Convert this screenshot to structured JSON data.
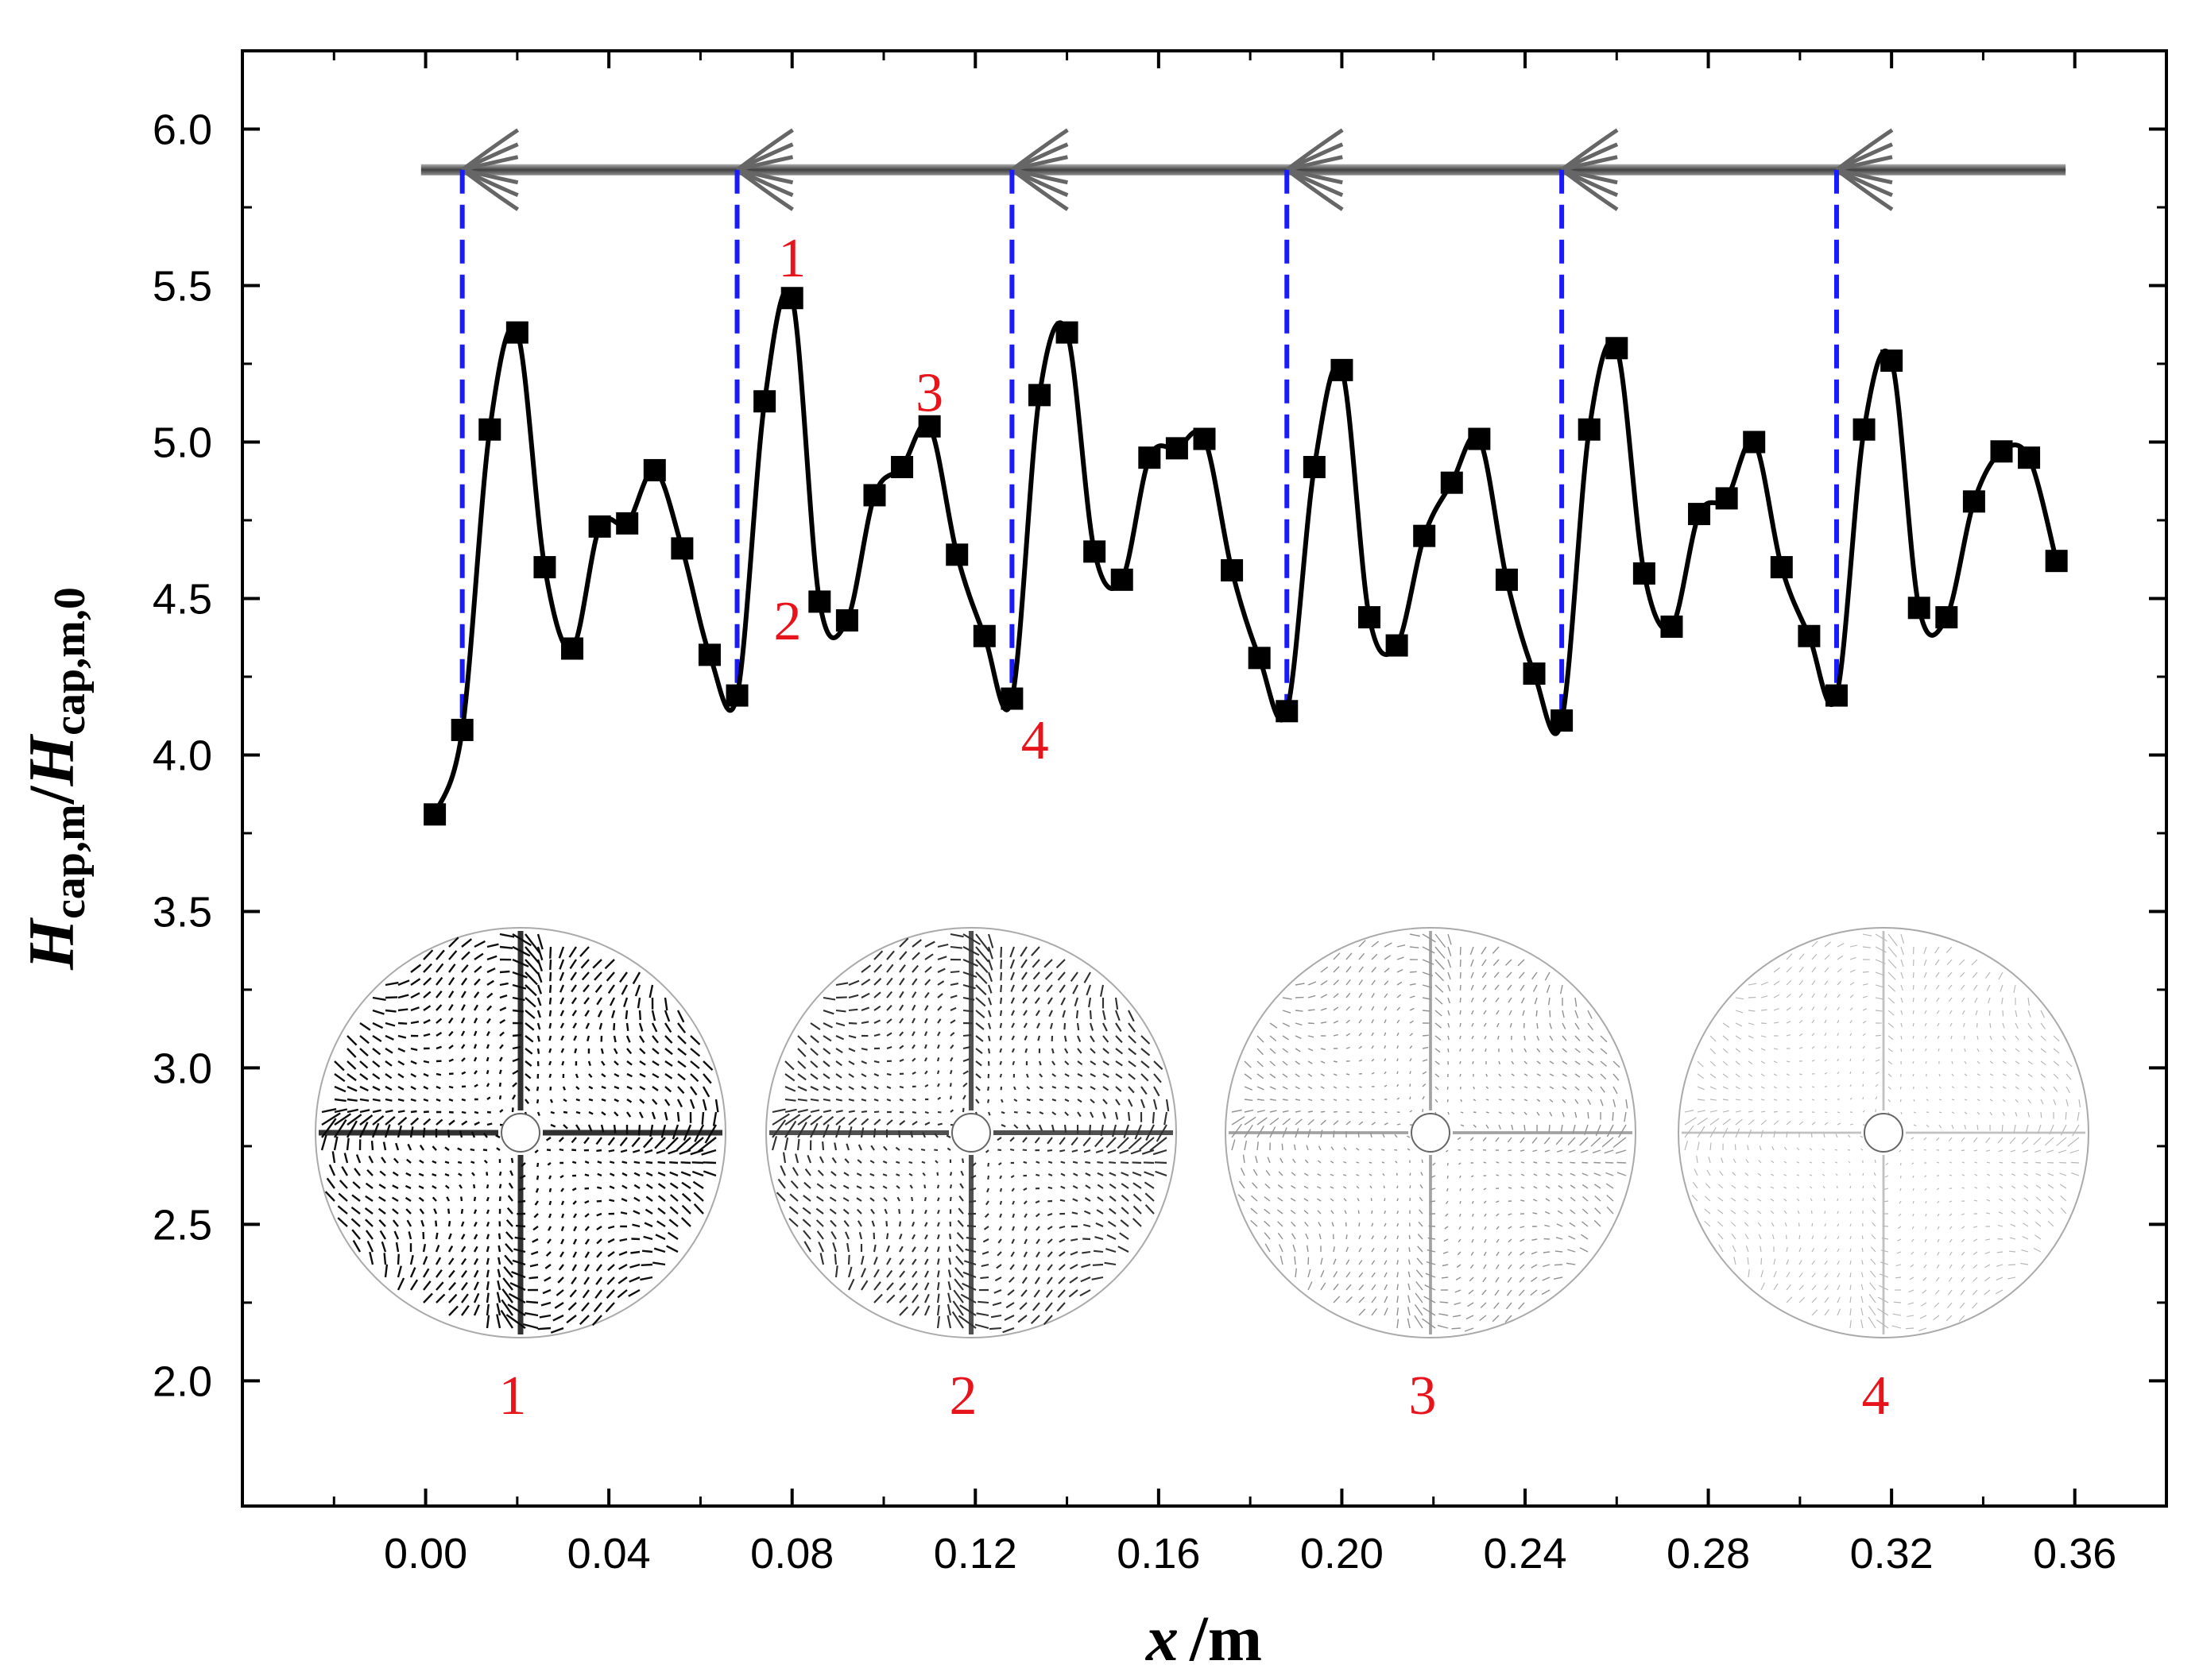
{
  "chart_data": {
    "type": "line",
    "xlabel": {
      "var": "x",
      "unit": "/m"
    },
    "ylabel": {
      "main": "H",
      "main_sub": "cap,m",
      "sep": "/",
      "den": "H",
      "den_sub": "cap,m,0"
    },
    "xlim": [
      -0.04,
      0.38
    ],
    "ylim": [
      1.6,
      6.25
    ],
    "x_ticks": [
      0.0,
      0.04,
      0.08,
      0.12,
      0.16,
      0.2,
      0.24,
      0.28,
      0.32,
      0.36
    ],
    "x_tick_labels": [
      "0.00",
      "0.04",
      "0.08",
      "0.12",
      "0.16",
      "0.20",
      "0.24",
      "0.28",
      "0.32",
      "0.36"
    ],
    "y_ticks": [
      2.0,
      2.5,
      3.0,
      3.5,
      4.0,
      4.5,
      5.0,
      5.5,
      6.0
    ],
    "y_tick_labels": [
      "2.0",
      "2.5",
      "3.0",
      "3.5",
      "4.0",
      "4.5",
      "5.0",
      "5.5",
      "6.0"
    ],
    "series": [
      {
        "name": "H_cap,m/H_cap,m,0",
        "x": [
          0.002,
          0.008,
          0.014,
          0.02,
          0.026,
          0.032,
          0.038,
          0.044,
          0.05,
          0.056,
          0.062,
          0.068,
          0.074,
          0.08,
          0.086,
          0.092,
          0.098,
          0.104,
          0.11,
          0.116,
          0.122,
          0.128,
          0.134,
          0.14,
          0.146,
          0.152,
          0.158,
          0.164,
          0.17,
          0.176,
          0.182,
          0.188,
          0.194,
          0.2,
          0.206,
          0.212,
          0.218,
          0.224,
          0.23,
          0.236,
          0.242,
          0.248,
          0.254,
          0.26,
          0.266,
          0.272,
          0.278,
          0.284,
          0.29,
          0.296,
          0.302,
          0.308,
          0.314,
          0.32,
          0.326,
          0.332,
          0.338,
          0.344,
          0.35,
          0.356
        ],
        "y": [
          3.81,
          4.08,
          5.04,
          5.35,
          4.6,
          4.34,
          4.73,
          4.74,
          4.91,
          4.66,
          4.32,
          4.19,
          5.13,
          5.46,
          4.49,
          4.43,
          4.83,
          4.92,
          5.05,
          4.64,
          4.38,
          4.18,
          5.15,
          5.35,
          4.65,
          4.56,
          4.95,
          4.98,
          5.01,
          4.59,
          4.31,
          4.14,
          4.92,
          5.23,
          4.44,
          4.35,
          4.7,
          4.87,
          5.01,
          4.56,
          4.26,
          4.11,
          5.04,
          5.3,
          4.58,
          4.41,
          4.77,
          4.82,
          5.0,
          4.6,
          4.38,
          4.19,
          5.04,
          5.26,
          4.47,
          4.44,
          4.81,
          4.97,
          4.95,
          4.62
        ]
      }
    ],
    "spiral_tape": {
      "y": 5.87,
      "arrow_x": [
        0.008,
        0.068,
        0.128,
        0.188,
        0.248,
        0.308
      ],
      "x_start": -0.001,
      "x_end": 0.358
    },
    "guide_lines": [
      {
        "x": 0.008,
        "y_from": 5.87,
        "y_to": 4.08
      },
      {
        "x": 0.068,
        "y_from": 5.87,
        "y_to": 4.19
      },
      {
        "x": 0.128,
        "y_from": 5.87,
        "y_to": 4.18
      },
      {
        "x": 0.188,
        "y_from": 5.87,
        "y_to": 4.14
      },
      {
        "x": 0.248,
        "y_from": 5.87,
        "y_to": 4.11
      },
      {
        "x": 0.308,
        "y_from": 5.87,
        "y_to": 4.19
      }
    ],
    "annotations": [
      {
        "text": "1",
        "x": 0.08,
        "y": 5.59
      },
      {
        "text": "2",
        "x": 0.079,
        "y": 4.43
      },
      {
        "text": "3",
        "x": 0.11,
        "y": 5.16
      },
      {
        "text": "4",
        "x": 0.133,
        "y": 4.05
      }
    ],
    "insets": [
      {
        "label": "1",
        "density": 1.0
      },
      {
        "label": "2",
        "density": 0.85
      },
      {
        "label": "3",
        "density": 0.45
      },
      {
        "label": "4",
        "density": 0.3
      }
    ],
    "colors": {
      "line": "#000000",
      "guide": "#1a1aff",
      "label": "#e8141b",
      "tape": "#666666"
    }
  }
}
